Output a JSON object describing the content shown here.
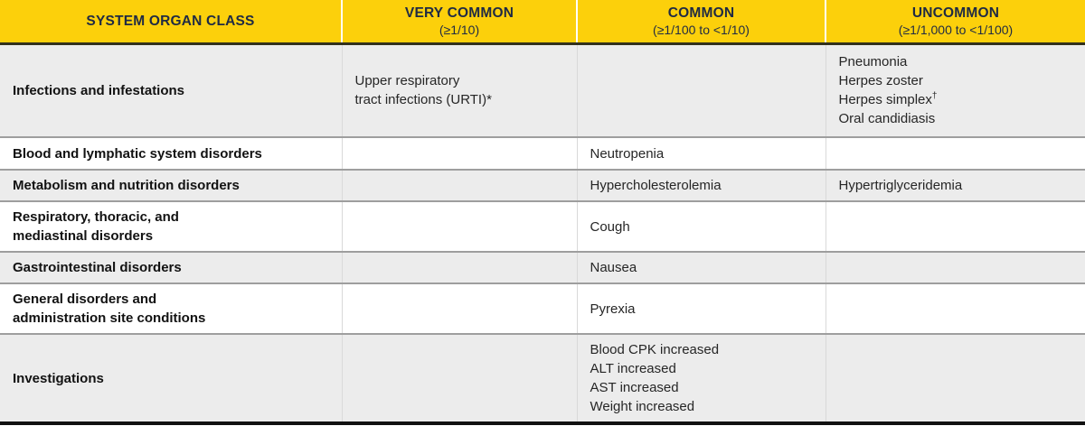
{
  "colors": {
    "header_bg": "#FCD00B",
    "header_text": "#1F2A44",
    "row_alt_bg": "#ECECEC",
    "row_bg": "#FFFFFF",
    "row_separator": "#9E9E9E",
    "column_separator": "#D9D9D9",
    "header_underline": "#32301C",
    "bottom_border": "#111111",
    "body_text": "#262626"
  },
  "table": {
    "header": [
      {
        "title": "SYSTEM ORGAN CLASS",
        "subtitle": ""
      },
      {
        "title": "VERY COMMON",
        "subtitle": "(≥1/10)"
      },
      {
        "title": "COMMON",
        "subtitle": "(≥1/100 to <1/10)"
      },
      {
        "title": "UNCOMMON",
        "subtitle": "(≥1/1,000 to <1/100)"
      }
    ],
    "rows": [
      {
        "cells": [
          [
            "Infections and infestations"
          ],
          [
            "Upper respiratory",
            "tract infections (URTI)*"
          ],
          [],
          [
            "Pneumonia",
            "Herpes zoster",
            {
              "text": "Herpes simplex",
              "sup": "†"
            },
            "Oral candidiasis"
          ]
        ]
      },
      {
        "cells": [
          [
            "Blood and lymphatic system disorders"
          ],
          [],
          [
            "Neutropenia"
          ],
          []
        ]
      },
      {
        "cells": [
          [
            "Metabolism and nutrition disorders"
          ],
          [],
          [
            "Hypercholesterolemia"
          ],
          [
            "Hypertriglyceridemia"
          ]
        ]
      },
      {
        "cells": [
          [
            "Respiratory, thoracic, and",
            "mediastinal disorders"
          ],
          [],
          [
            "Cough"
          ],
          []
        ]
      },
      {
        "cells": [
          [
            "Gastrointestinal disorders"
          ],
          [],
          [
            "Nausea"
          ],
          []
        ]
      },
      {
        "cells": [
          [
            "General disorders and",
            "administration site conditions"
          ],
          [],
          [
            "Pyrexia"
          ],
          []
        ]
      },
      {
        "cells": [
          [
            "Investigations"
          ],
          [],
          [
            "Blood CPK increased",
            "ALT increased",
            "AST increased",
            "Weight increased"
          ],
          []
        ]
      }
    ]
  }
}
